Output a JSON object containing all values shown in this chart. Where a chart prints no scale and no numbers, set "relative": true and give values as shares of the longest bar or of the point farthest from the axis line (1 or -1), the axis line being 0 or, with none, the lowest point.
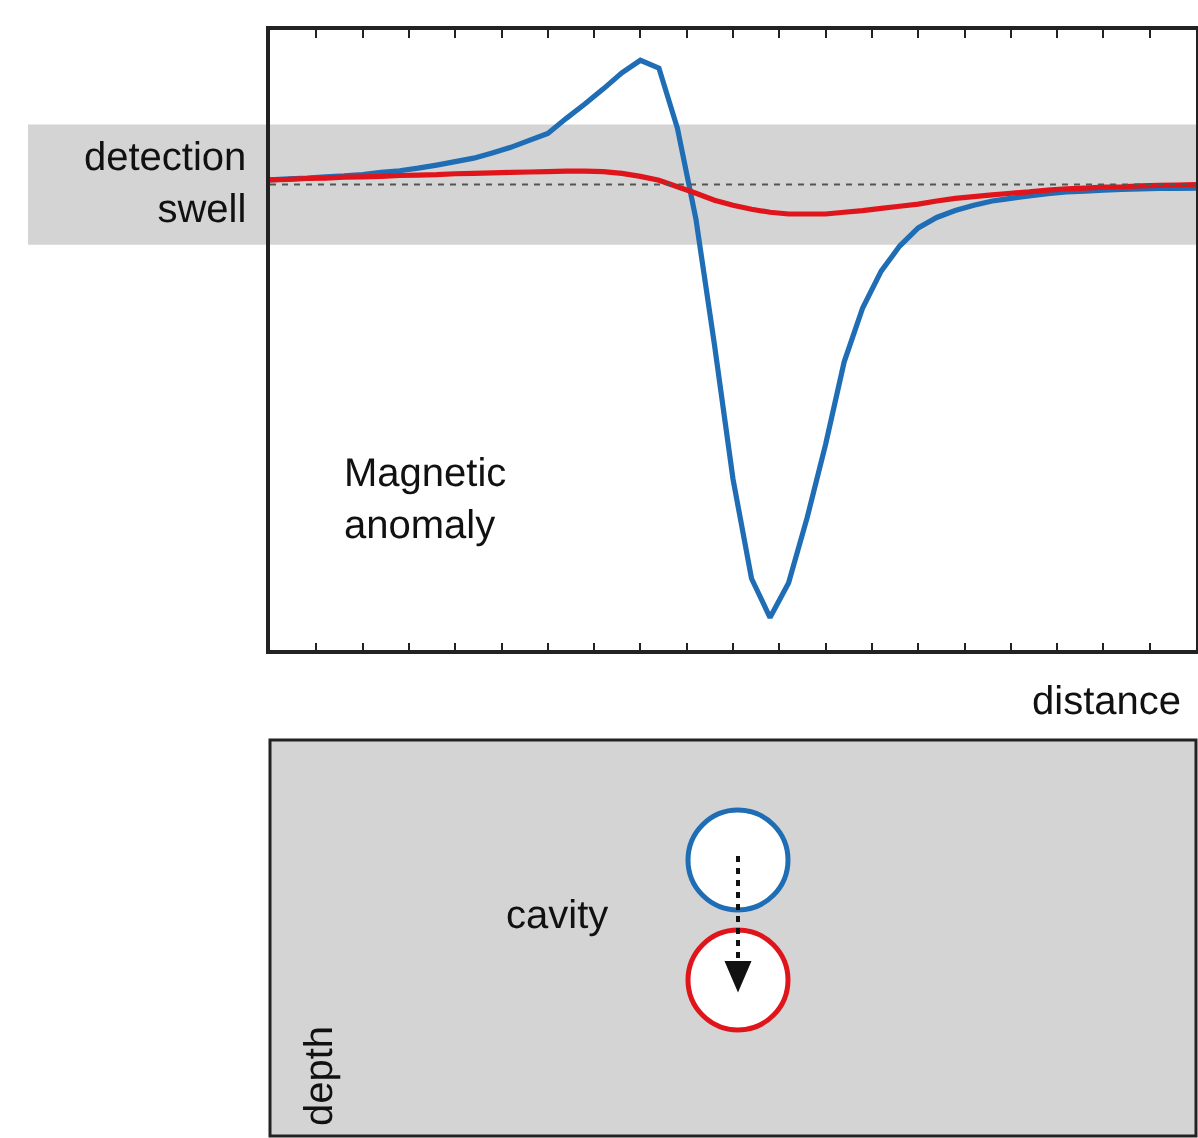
{
  "chart_data": [
    {
      "type": "line",
      "relative": true,
      "categories": [
        null,
        null,
        null,
        null,
        null,
        null,
        null,
        null,
        null,
        null,
        null,
        null,
        null,
        null,
        null,
        null,
        null,
        null,
        null,
        null,
        null,
        null,
        null,
        null,
        null,
        null,
        null,
        null,
        null,
        null,
        null,
        null,
        null,
        null,
        null,
        null,
        null,
        null,
        null,
        null,
        null,
        null,
        null,
        null,
        null,
        null,
        null,
        null,
        null,
        null,
        null
      ],
      "tick_labels": false,
      "xlabel": "distance",
      "grid": false,
      "marker": "none",
      "line_style": "solid",
      "series": [
        {
          "color": "#1f6db5",
          "values": [
            0.011,
            0.013,
            0.015,
            0.018,
            0.02,
            0.023,
            0.028,
            0.032,
            0.038,
            0.045,
            0.053,
            0.061,
            0.073,
            0.086,
            0.102,
            0.118,
            0.153,
            0.186,
            0.221,
            0.258,
            0.287,
            0.269,
            0.13,
            -0.08,
            -0.37,
            -0.68,
            -0.91,
            -1,
            -0.92,
            -0.77,
            -0.6,
            -0.41,
            -0.285,
            -0.2,
            -0.142,
            -0.1,
            -0.076,
            -0.06,
            -0.048,
            -0.038,
            -0.032,
            -0.026,
            -0.021,
            -0.017,
            -0.015,
            -0.013,
            -0.011,
            -0.01,
            -0.009,
            -0.009,
            -0.008
          ]
        },
        {
          "color": "#e0151b",
          "values": [
            0.011,
            0.012,
            0.014,
            0.015,
            0.017,
            0.018,
            0.019,
            0.021,
            0.022,
            0.023,
            0.025,
            0.026,
            0.027,
            0.028,
            0.029,
            0.03,
            0.031,
            0.031,
            0.03,
            0.026,
            0.019,
            0.01,
            -0.005,
            -0.02,
            -0.036,
            -0.048,
            -0.057,
            -0.064,
            -0.068,
            -0.068,
            -0.068,
            -0.064,
            -0.06,
            -0.055,
            -0.05,
            -0.045,
            -0.038,
            -0.032,
            -0.028,
            -0.024,
            -0.02,
            -0.017,
            -0.013,
            -0.01,
            -0.008,
            -0.006,
            -0.005,
            -0.003,
            -0.002,
            -0.001,
            0
          ]
        }
      ],
      "ref_lines": [
        {
          "axis": "y",
          "value": 0,
          "line_style": "dotted",
          "color": "#555555"
        }
      ],
      "bands": [
        {
          "axis": "y",
          "from": -0.139,
          "to": 0.139,
          "label": "detection\nswell",
          "color": "#d4d4d4"
        }
      ],
      "annotations": [
        "Magnetic\nanomaly"
      ]
    },
    {
      "type": "other",
      "ylabel": "depth",
      "annotations": [
        "cavity"
      ]
    }
  ]
}
